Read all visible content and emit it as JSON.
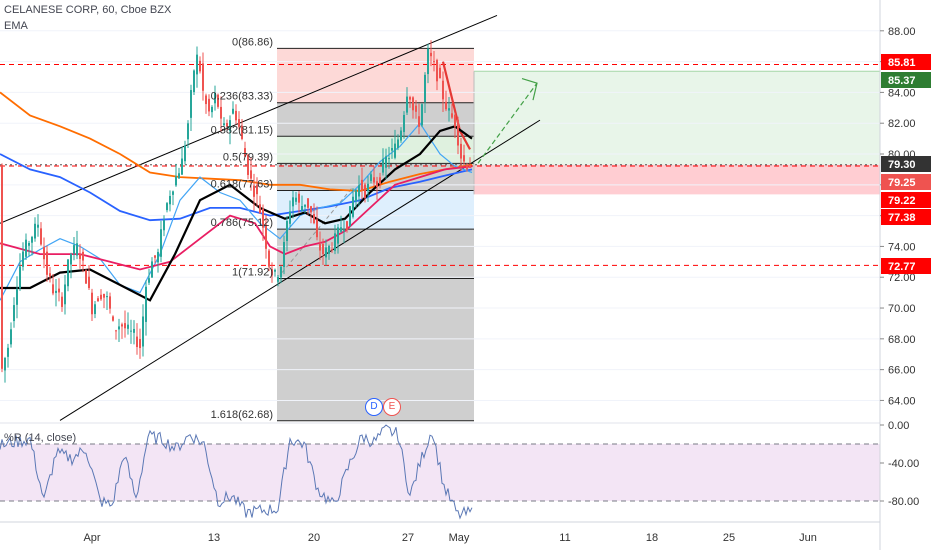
{
  "header": {
    "symbol_line": "CELANESE CORP, 60, Cboe BZX",
    "indicator": "EMA",
    "wr_label": "%R (14, close)"
  },
  "buttons": {
    "d": "D",
    "e": "E"
  },
  "colors": {
    "up": "#26a69a",
    "down": "#ef5350",
    "red_dash": "#ff0000",
    "ema_black": "#000000",
    "ema_red": "#e91e63",
    "ema_orange": "#ff6d00",
    "ema_blue": "#2962ff",
    "ema_lightblue": "#42a5f5",
    "wr_line": "#5b78b5",
    "wr_band": "#f3e5f5",
    "green_zone": "#e8f5e9",
    "red_zone": "#ffcdd2"
  },
  "chart_data": {
    "type": "candlestick",
    "price_axis": {
      "range": [
        62.6,
        90.0
      ],
      "ticks": [
        "88.00",
        "86.00",
        "84.00",
        "82.00",
        "80.00",
        "78.00",
        "76.00",
        "74.00",
        "72.00",
        "70.00",
        "68.00",
        "66.00",
        "64.00"
      ]
    },
    "time_axis": {
      "labels": [
        "Apr",
        "13",
        "20",
        "27",
        "May",
        "11",
        "18",
        "25",
        "Jun"
      ]
    },
    "price_labels": [
      {
        "value": 85.81,
        "text": "85.81",
        "color": "#ff0000"
      },
      {
        "value": 85.37,
        "text": "85.37",
        "color": "#2e7d32"
      },
      {
        "value": 79.3,
        "text": "79.30",
        "color": "#333333"
      },
      {
        "value": 79.25,
        "text": "79.25",
        "color": "#ef5350"
      },
      {
        "value": 79.22,
        "text": "79.22",
        "color": "#ff0000"
      },
      {
        "value": 77.38,
        "text": "77.38",
        "color": "#ff0000"
      },
      {
        "value": 72.77,
        "text": "72.77",
        "color": "#ff0000"
      }
    ],
    "horizontal_levels": [
      85.81,
      79.22,
      72.77
    ],
    "fibonacci": [
      {
        "label": "0(86.86)",
        "value": 86.86
      },
      {
        "label": "0.236(83.33)",
        "value": 83.33
      },
      {
        "label": "0.382(81.15)",
        "value": 81.15
      },
      {
        "label": "0.5(79.39)",
        "value": 79.39
      },
      {
        "label": "0.618(77.63)",
        "value": 77.63
      },
      {
        "label": "0.786(75.12)",
        "value": 75.12
      },
      {
        "label": "1(71.92)",
        "value": 71.92
      },
      {
        "label": "1.618(62.68)",
        "value": 62.68
      }
    ],
    "target_zone": {
      "top": 85.37,
      "entry": 79.3,
      "stop": 77.38
    },
    "candle_anchors": [
      [
        0,
        65.5
      ],
      [
        8,
        67.5
      ],
      [
        14,
        70.5
      ],
      [
        22,
        73.5
      ],
      [
        30,
        74.5
      ],
      [
        38,
        75.5
      ],
      [
        46,
        72.5
      ],
      [
        54,
        71.0
      ],
      [
        62,
        70.5
      ],
      [
        70,
        73.5
      ],
      [
        78,
        74.0
      ],
      [
        86,
        72.0
      ],
      [
        92,
        70.0
      ],
      [
        100,
        71.0
      ],
      [
        108,
        70.5
      ],
      [
        114,
        68.5
      ],
      [
        120,
        69.0
      ],
      [
        128,
        68.5
      ],
      [
        134,
        68.2
      ],
      [
        140,
        67.5
      ],
      [
        146,
        71.5
      ],
      [
        152,
        73.0
      ],
      [
        158,
        73.5
      ],
      [
        164,
        76.0
      ],
      [
        170,
        77.5
      ],
      [
        176,
        78.5
      ],
      [
        182,
        79.5
      ],
      [
        188,
        82.0
      ],
      [
        194,
        85.5
      ],
      [
        198,
        86.5
      ],
      [
        204,
        83.5
      ],
      [
        210,
        82.5
      ],
      [
        216,
        84.0
      ],
      [
        222,
        81.5
      ],
      [
        228,
        82.0
      ],
      [
        234,
        83.0
      ],
      [
        240,
        81.5
      ],
      [
        246,
        79.5
      ],
      [
        252,
        78.0
      ],
      [
        258,
        77.0
      ],
      [
        264,
        75.0
      ],
      [
        270,
        72.5
      ],
      [
        276,
        72.0
      ],
      [
        282,
        73.0
      ],
      [
        288,
        76.0
      ],
      [
        294,
        77.5
      ],
      [
        300,
        76.5
      ],
      [
        306,
        77.0
      ],
      [
        312,
        76.0
      ],
      [
        318,
        74.0
      ],
      [
        324,
        73.5
      ],
      [
        330,
        74.0
      ],
      [
        336,
        74.5
      ],
      [
        342,
        75.5
      ],
      [
        348,
        75.5
      ],
      [
        354,
        77.5
      ],
      [
        360,
        78.0
      ],
      [
        366,
        77.5
      ],
      [
        372,
        78.5
      ],
      [
        378,
        78.0
      ],
      [
        384,
        79.5
      ],
      [
        390,
        80.0
      ],
      [
        396,
        80.5
      ],
      [
        402,
        82.0
      ],
      [
        408,
        84.5
      ],
      [
        414,
        82.5
      ],
      [
        420,
        82.0
      ],
      [
        424,
        84.5
      ],
      [
        428,
        86.5
      ],
      [
        432,
        86.0
      ],
      [
        438,
        85.0
      ],
      [
        444,
        83.5
      ],
      [
        450,
        82.5
      ],
      [
        456,
        82.0
      ],
      [
        460,
        80.0
      ],
      [
        464,
        79.5
      ],
      [
        468,
        79.3
      ]
    ],
    "ema_lines": {
      "black": [
        [
          0,
          71.3
        ],
        [
          30,
          71.3
        ],
        [
          60,
          72.3
        ],
        [
          90,
          72.5
        ],
        [
          120,
          71.5
        ],
        [
          150,
          70.5
        ],
        [
          175,
          73.5
        ],
        [
          200,
          77.0
        ],
        [
          230,
          78.0
        ],
        [
          260,
          76.5
        ],
        [
          285,
          75.8
        ],
        [
          305,
          76.2
        ],
        [
          325,
          75.5
        ],
        [
          345,
          75.8
        ],
        [
          370,
          77.5
        ],
        [
          395,
          79.0
        ],
        [
          420,
          80.0
        ],
        [
          440,
          81.5
        ],
        [
          455,
          81.8
        ],
        [
          472,
          81.0
        ]
      ],
      "red": [
        [
          0,
          74.2
        ],
        [
          40,
          73.5
        ],
        [
          80,
          73.5
        ],
        [
          110,
          73.0
        ],
        [
          140,
          72.5
        ],
        [
          170,
          73.0
        ],
        [
          200,
          74.5
        ],
        [
          230,
          76.0
        ],
        [
          255,
          75.5
        ],
        [
          270,
          74.0
        ],
        [
          285,
          73.5
        ],
        [
          305,
          74.0
        ],
        [
          325,
          74.3
        ],
        [
          345,
          75.0
        ],
        [
          370,
          76.5
        ],
        [
          395,
          78.0
        ],
        [
          420,
          78.5
        ],
        [
          445,
          79.0
        ],
        [
          472,
          79.2
        ]
      ],
      "orange": [
        [
          0,
          84.0
        ],
        [
          30,
          82.5
        ],
        [
          60,
          81.8
        ],
        [
          90,
          81.0
        ],
        [
          120,
          80.0
        ],
        [
          150,
          78.8
        ],
        [
          180,
          78.5
        ],
        [
          210,
          78.4
        ],
        [
          240,
          78.3
        ],
        [
          270,
          78.0
        ],
        [
          300,
          78.0
        ],
        [
          330,
          77.7
        ],
        [
          360,
          77.6
        ],
        [
          390,
          78.2
        ],
        [
          420,
          78.7
        ],
        [
          445,
          79.0
        ],
        [
          472,
          79.3
        ]
      ],
      "blue": [
        [
          0,
          80.0
        ],
        [
          30,
          79.0
        ],
        [
          60,
          78.5
        ],
        [
          90,
          77.5
        ],
        [
          120,
          76.3
        ],
        [
          150,
          75.7
        ],
        [
          180,
          75.8
        ],
        [
          210,
          76.5
        ],
        [
          240,
          76.5
        ],
        [
          270,
          76.0
        ],
        [
          300,
          76.3
        ],
        [
          330,
          76.6
        ],
        [
          360,
          77.0
        ],
        [
          390,
          77.8
        ],
        [
          420,
          78.2
        ],
        [
          445,
          78.6
        ],
        [
          472,
          79.0
        ]
      ],
      "light_blue": [
        [
          0,
          70.5
        ],
        [
          20,
          73.0
        ],
        [
          40,
          73.8
        ],
        [
          60,
          74.5
        ],
        [
          80,
          74.0
        ],
        [
          100,
          73.2
        ],
        [
          120,
          71.5
        ],
        [
          140,
          71.0
        ],
        [
          160,
          73.5
        ],
        [
          180,
          77.0
        ],
        [
          200,
          78.5
        ],
        [
          220,
          77.5
        ],
        [
          240,
          77.0
        ],
        [
          260,
          75.5
        ],
        [
          280,
          74.5
        ],
        [
          300,
          76.0
        ],
        [
          320,
          76.5
        ],
        [
          340,
          76.8
        ],
        [
          360,
          78.0
        ],
        [
          380,
          79.5
        ],
        [
          400,
          80.5
        ],
        [
          420,
          82.0
        ],
        [
          440,
          80.0
        ],
        [
          455,
          79.2
        ],
        [
          472,
          78.8
        ]
      ]
    },
    "wr_panel": {
      "ticks": [
        "0.00",
        "-40.00",
        "-80.00"
      ],
      "range": [
        0,
        -100
      ],
      "bands": [
        -20,
        -80
      ],
      "values": [
        [
          0,
          -22
        ],
        [
          14,
          -18
        ],
        [
          30,
          -15
        ],
        [
          44,
          -80
        ],
        [
          56,
          -30
        ],
        [
          72,
          -35
        ],
        [
          86,
          -25
        ],
        [
          100,
          -80
        ],
        [
          112,
          -85
        ],
        [
          124,
          -30
        ],
        [
          136,
          -78
        ],
        [
          148,
          -12
        ],
        [
          162,
          -15
        ],
        [
          176,
          -25
        ],
        [
          190,
          -10
        ],
        [
          204,
          -20
        ],
        [
          218,
          -80
        ],
        [
          232,
          -75
        ],
        [
          246,
          -92
        ],
        [
          262,
          -90
        ],
        [
          278,
          -88
        ],
        [
          290,
          -15
        ],
        [
          304,
          -20
        ],
        [
          318,
          -68
        ],
        [
          334,
          -85
        ],
        [
          350,
          -40
        ],
        [
          362,
          -12
        ],
        [
          374,
          -18
        ],
        [
          386,
          -5
        ],
        [
          398,
          -10
        ],
        [
          410,
          -75
        ],
        [
          420,
          -40
        ],
        [
          432,
          -5
        ],
        [
          444,
          -65
        ],
        [
          458,
          -95
        ],
        [
          472,
          -92
        ]
      ]
    }
  }
}
